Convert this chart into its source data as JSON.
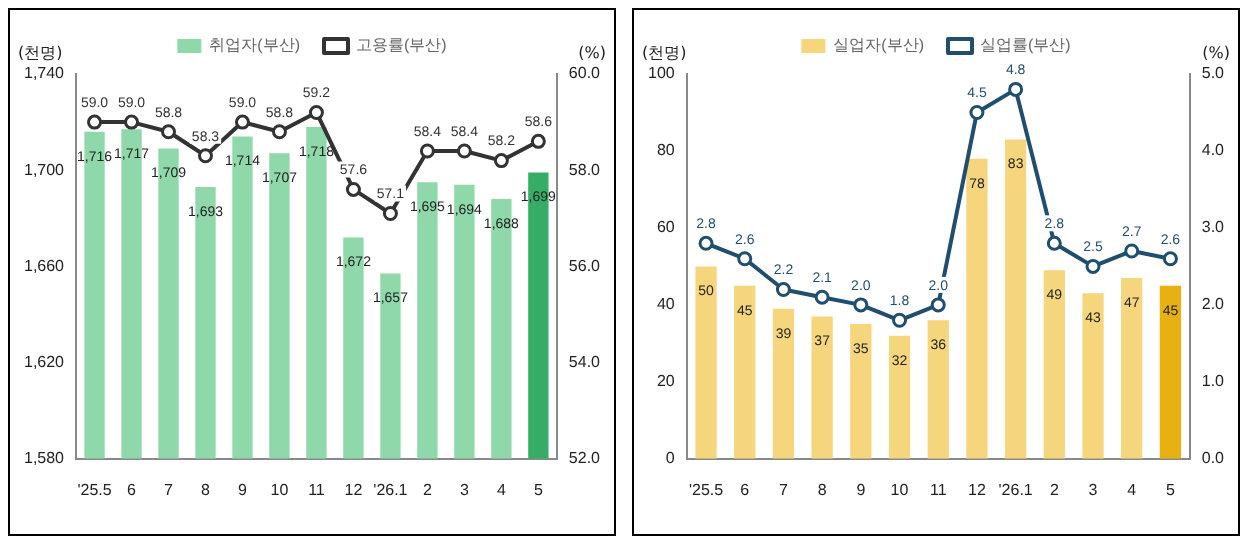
{
  "chart_data": [
    {
      "type": "bar",
      "ylabel": "(천명)",
      "y2label": "(%)",
      "categories": [
        "'25.5",
        "6",
        "7",
        "8",
        "9",
        "10",
        "11",
        "12",
        "'26.1",
        "2",
        "3",
        "4",
        "5"
      ],
      "series": [
        {
          "name": "취업자(부산)",
          "value_labels": [
            "1,716",
            "1,717",
            "1,709",
            "1,693",
            "1,714",
            "1,707",
            "1,718",
            "1,672",
            "1,657",
            "1,695",
            "1,694",
            "1,688",
            "1,699"
          ],
          "colors": [
            "#8fd8aa",
            "#8fd8aa",
            "#8fd8aa",
            "#8fd8aa",
            "#8fd8aa",
            "#8fd8aa",
            "#8fd8aa",
            "#8fd8aa",
            "#8fd8aa",
            "#8fd8aa",
            "#8fd8aa",
            "#8fd8aa",
            "#36ad66"
          ],
          "values": [
            1716,
            1717,
            1709,
            1693,
            1714,
            1707,
            1718,
            1672,
            1657,
            1695,
            1694,
            1688,
            1699
          ]
        },
        {
          "name": "고용률(부산)",
          "type": "line",
          "axis": "y2",
          "color": "#333333",
          "value_labels": [
            "59.0",
            "59.0",
            "58.8",
            "58.3",
            "59.0",
            "58.8",
            "59.2",
            "57.6",
            "57.1",
            "58.4",
            "58.4",
            "58.2",
            "58.6"
          ],
          "values": [
            59.0,
            59.0,
            58.8,
            58.3,
            59.0,
            58.8,
            59.2,
            57.6,
            57.1,
            58.4,
            58.4,
            58.2,
            58.6
          ]
        }
      ],
      "ylim": [
        1580,
        1740
      ],
      "yticks": [
        {
          "value": 1580,
          "label": "1,580"
        },
        {
          "value": 1620,
          "label": "1,620"
        },
        {
          "value": 1660,
          "label": "1,660"
        },
        {
          "value": 1700,
          "label": "1,700"
        },
        {
          "value": 1740,
          "label": "1,740"
        }
      ],
      "y2lim": [
        52,
        60
      ],
      "y2ticks": [
        {
          "value": 52,
          "label": "52.0"
        },
        {
          "value": 54,
          "label": "54.0"
        },
        {
          "value": 56,
          "label": "56.0"
        },
        {
          "value": 58,
          "label": "58.0"
        },
        {
          "value": 60,
          "label": "60.0"
        }
      ],
      "legend": "top",
      "marker": "circle",
      "grid": false
    },
    {
      "type": "bar",
      "ylabel": "(천명)",
      "y2label": "(%)",
      "categories": [
        "'25.5",
        "6",
        "7",
        "8",
        "9",
        "10",
        "11",
        "12",
        "'26.1",
        "2",
        "3",
        "4",
        "5"
      ],
      "series": [
        {
          "name": "실업자(부산)",
          "value_labels": [
            "50",
            "45",
            "39",
            "37",
            "35",
            "32",
            "36",
            "78",
            "83",
            "49",
            "43",
            "47",
            "45"
          ],
          "colors": [
            "#f5d67c",
            "#f5d67c",
            "#f5d67c",
            "#f5d67c",
            "#f5d67c",
            "#f5d67c",
            "#f5d67c",
            "#f5d67c",
            "#f5d67c",
            "#f5d67c",
            "#f5d67c",
            "#f5d67c",
            "#e8b010"
          ],
          "values": [
            50,
            45,
            39,
            37,
            35,
            32,
            36,
            78,
            83,
            49,
            43,
            47,
            45
          ]
        },
        {
          "name": "실업률(부산)",
          "type": "line",
          "axis": "y2",
          "color": "#1f4e6e",
          "value_labels": [
            "2.8",
            "2.6",
            "2.2",
            "2.1",
            "2.0",
            "1.8",
            "2.0",
            "4.5",
            "4.8",
            "2.8",
            "2.5",
            "2.7",
            "2.6"
          ],
          "values": [
            2.8,
            2.6,
            2.2,
            2.1,
            2.0,
            1.8,
            2.0,
            4.5,
            4.8,
            2.8,
            2.5,
            2.7,
            2.6
          ]
        }
      ],
      "ylim": [
        0,
        100
      ],
      "yticks": [
        0,
        20,
        40,
        60,
        80,
        100
      ],
      "y2lim": [
        0,
        5
      ],
      "y2ticks": [
        {
          "value": 0,
          "label": "0.0"
        },
        {
          "value": 1,
          "label": "1.0"
        },
        {
          "value": 2,
          "label": "2.0"
        },
        {
          "value": 3,
          "label": "3.0"
        },
        {
          "value": 4,
          "label": "4.0"
        },
        {
          "value": 5,
          "label": "5.0"
        }
      ],
      "legend": "top",
      "marker": "circle",
      "grid": false
    }
  ]
}
